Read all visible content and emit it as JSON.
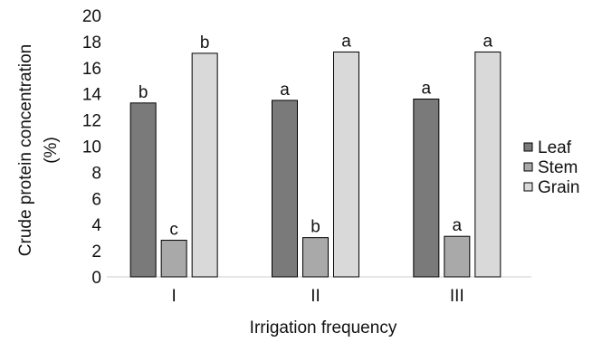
{
  "chart_data": {
    "type": "bar",
    "title": "",
    "xlabel": "Irrigation frequency",
    "ylabel": "Crude protein concentration (%)",
    "ylabel_lines": [
      "Crude protein concentration",
      "(%)"
    ],
    "ylim": [
      0,
      20
    ],
    "yticks": [
      0,
      2,
      4,
      6,
      8,
      10,
      12,
      14,
      16,
      18,
      20
    ],
    "categories": [
      "I",
      "II",
      "III"
    ],
    "grid": false,
    "legend_position": "right",
    "series": [
      {
        "name": "Leaf",
        "color": "#7a7a7a",
        "values": [
          13.3,
          13.5,
          13.6
        ],
        "labels": [
          "b",
          "a",
          "a"
        ]
      },
      {
        "name": "Stem",
        "color": "#a9a9a9",
        "values": [
          2.8,
          3.0,
          3.1
        ],
        "labels": [
          "c",
          "b",
          "a"
        ]
      },
      {
        "name": "Grain",
        "color": "#d9d9d9",
        "values": [
          17.1,
          17.2,
          17.2
        ],
        "labels": [
          "b",
          "a",
          "a"
        ]
      }
    ]
  }
}
